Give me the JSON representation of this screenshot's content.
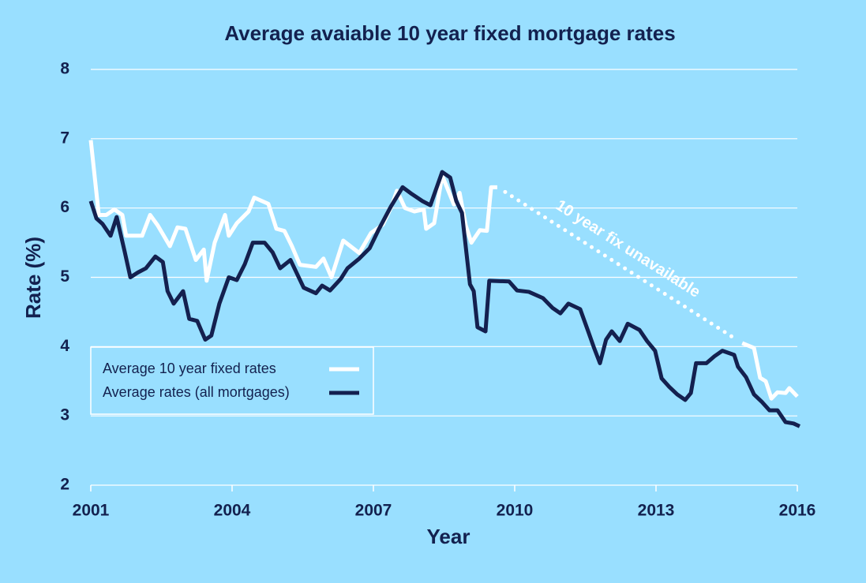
{
  "chart_data": {
    "type": "line",
    "title": "Average avaiable 10 year fixed mortgage rates",
    "x_label": "Year",
    "y_label": "Rate (%)",
    "annotation": "10 year fix unavailable",
    "legend": "lower left",
    "grid": true,
    "xlim": [
      2001,
      2016
    ],
    "xticks": [
      2001,
      2004,
      2007,
      2010,
      2013,
      2016
    ],
    "ylim": [
      2,
      8
    ],
    "yticks": [
      2,
      3,
      4,
      5,
      6,
      7,
      8
    ],
    "series": [
      {
        "name": "Average 10 year fixed rates",
        "color": "#ffffff",
        "x": [
          2001.0,
          2001.17,
          2001.33,
          2001.5,
          2001.67,
          2001.75,
          2002.09,
          2002.26,
          2002.42,
          2002.68,
          2002.84,
          2003.01,
          2003.23,
          2003.4,
          2003.46,
          2003.63,
          2003.85,
          2003.93,
          2004.1,
          2004.35,
          2004.47,
          2004.77,
          2004.94,
          2005.11,
          2005.27,
          2005.44,
          2005.78,
          2005.94,
          2006.11,
          2006.36,
          2006.53,
          2006.7,
          2006.95,
          2007.2,
          2007.37,
          2007.5,
          2007.67,
          2007.87,
          2008.07,
          2008.12,
          2008.29,
          2008.46,
          2008.71,
          2008.83,
          2008.96,
          2009.08,
          2009.26,
          2009.41,
          2009.5,
          2009.63,
          null,
          2014.83,
          2015.08,
          2015.21,
          2015.33,
          2015.45,
          2015.58,
          2015.75,
          2015.83,
          2016.0
        ],
        "values": [
          6.98,
          5.9,
          5.9,
          5.98,
          5.9,
          5.6,
          5.6,
          5.9,
          5.75,
          5.45,
          5.72,
          5.7,
          5.25,
          5.4,
          4.95,
          5.5,
          5.9,
          5.6,
          5.78,
          5.95,
          6.15,
          6.06,
          5.7,
          5.67,
          5.45,
          5.18,
          5.15,
          5.27,
          5.0,
          5.53,
          5.44,
          5.35,
          5.64,
          5.76,
          6.0,
          6.25,
          6.0,
          5.95,
          5.98,
          5.7,
          5.78,
          6.47,
          6.05,
          6.22,
          5.75,
          5.5,
          5.68,
          5.67,
          6.3,
          6.3,
          null,
          4.05,
          3.98,
          3.55,
          3.5,
          3.25,
          3.34,
          3.33,
          3.4,
          3.28
        ]
      },
      {
        "name": "Average rates (all mortgages)",
        "color": "#14204f",
        "x": [
          2001.0,
          2001.12,
          2001.25,
          2001.42,
          2001.55,
          2001.72,
          2001.84,
          2002.0,
          2002.17,
          2002.37,
          2002.53,
          2002.63,
          2002.76,
          2002.96,
          2003.09,
          2003.26,
          2003.43,
          2003.56,
          2003.73,
          2003.93,
          2004.1,
          2004.27,
          2004.44,
          2004.69,
          2004.86,
          2005.02,
          2005.24,
          2005.52,
          2005.78,
          2005.91,
          2006.08,
          2006.31,
          2006.45,
          2006.7,
          2006.92,
          2007.12,
          2007.37,
          2007.62,
          2007.82,
          2008.04,
          2008.21,
          2008.46,
          2008.63,
          2008.76,
          2008.88,
          2009.05,
          2009.13,
          2009.21,
          2009.38,
          2009.46,
          2009.88,
          2010.05,
          2010.3,
          2010.6,
          2010.8,
          2010.97,
          2011.14,
          2011.39,
          2011.56,
          2011.68,
          2011.81,
          2011.94,
          2012.06,
          2012.23,
          2012.4,
          2012.65,
          2012.81,
          2012.98,
          2013.12,
          2013.28,
          2013.45,
          2013.62,
          2013.74,
          2013.85,
          2014.07,
          2014.24,
          2014.41,
          2014.66,
          2014.74,
          2014.91,
          2015.08,
          2015.25,
          2015.41,
          2015.58,
          2015.75,
          2015.92,
          2016.05
        ],
        "values": [
          6.1,
          5.85,
          5.77,
          5.6,
          5.87,
          5.37,
          5.0,
          5.07,
          5.13,
          5.3,
          5.22,
          4.8,
          4.62,
          4.8,
          4.4,
          4.37,
          4.1,
          4.16,
          4.62,
          5.0,
          4.96,
          5.19,
          5.5,
          5.5,
          5.36,
          5.13,
          5.25,
          4.85,
          4.77,
          4.88,
          4.81,
          4.98,
          5.13,
          5.27,
          5.42,
          5.7,
          6.02,
          6.3,
          6.2,
          6.1,
          6.04,
          6.52,
          6.44,
          6.1,
          5.93,
          4.9,
          4.8,
          4.28,
          4.22,
          4.95,
          4.94,
          4.81,
          4.79,
          4.7,
          4.56,
          4.48,
          4.62,
          4.54,
          4.22,
          3.99,
          3.76,
          4.1,
          4.22,
          4.08,
          4.33,
          4.24,
          4.08,
          3.94,
          3.54,
          3.42,
          3.31,
          3.23,
          3.33,
          3.76,
          3.76,
          3.86,
          3.94,
          3.88,
          3.71,
          3.56,
          3.31,
          3.2,
          3.08,
          3.08,
          2.91,
          2.89,
          2.85
        ]
      }
    ]
  }
}
